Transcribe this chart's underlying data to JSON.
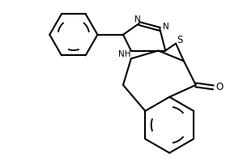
{
  "bg_color": "#ffffff",
  "line_color": "#000000",
  "line_width": 1.5,
  "font_size": 7.5,
  "atoms": {
    "S_label": "S",
    "O_label": "O",
    "N_labels": [
      "N",
      "N"
    ],
    "NH_label": "NH"
  }
}
